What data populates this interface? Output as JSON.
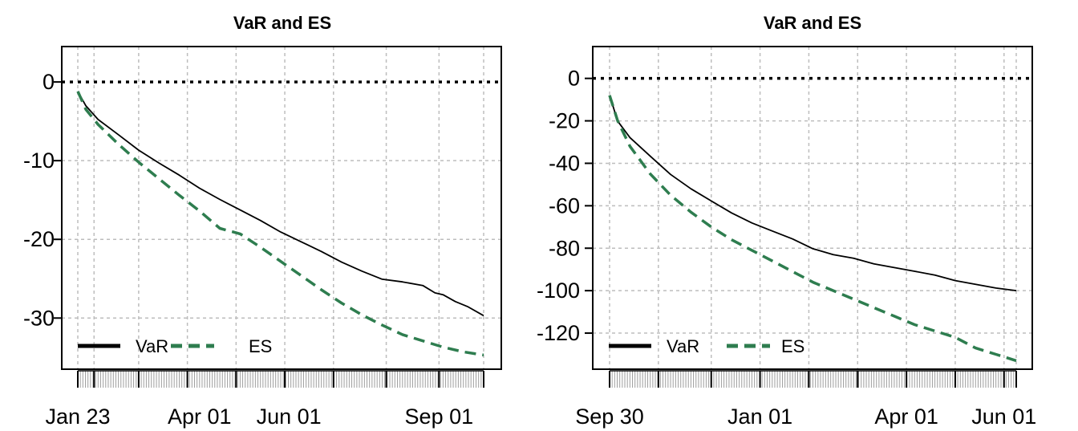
{
  "colors": {
    "var": "#000000",
    "es": "#2e7d4f",
    "grid": "#bdbdbd",
    "zero": "#000000"
  },
  "chart_data": [
    {
      "type": "line",
      "title": "VaR and ES",
      "x_ticks": [
        "Jan 23",
        "Apr 01",
        "Jun 01",
        "Sep 01"
      ],
      "x_tick_pos": [
        0.0,
        0.3,
        0.52,
        0.89
      ],
      "grid_x": [
        0.0,
        0.04,
        0.15,
        0.27,
        0.39,
        0.51,
        0.63,
        0.76,
        0.89,
        1.0
      ],
      "y_ticks": [
        0,
        -10,
        -20,
        -30
      ],
      "ylim": [
        -36.5,
        4.5
      ],
      "grid": true,
      "legend_position": "bottom-left",
      "series": [
        {
          "name": "VaR",
          "x": [
            0.0,
            0.02,
            0.05,
            0.1,
            0.15,
            0.2,
            0.25,
            0.3,
            0.35,
            0.4,
            0.45,
            0.5,
            0.55,
            0.6,
            0.65,
            0.7,
            0.75,
            0.8,
            0.85,
            0.88,
            0.9,
            0.93,
            0.96,
            1.0
          ],
          "y": [
            -1.2,
            -3.0,
            -4.8,
            -6.8,
            -8.6,
            -10.3,
            -11.9,
            -13.4,
            -14.9,
            -16.3,
            -17.7,
            -19.0,
            -20.3,
            -21.6,
            -22.8,
            -24.0,
            -25.1,
            -25.5,
            -25.8,
            -26.8,
            -27.1,
            -27.8,
            -28.5,
            -29.7
          ]
        },
        {
          "name": "ES",
          "x": [
            0.0,
            0.02,
            0.05,
            0.1,
            0.15,
            0.2,
            0.25,
            0.3,
            0.35,
            0.4,
            0.45,
            0.5,
            0.55,
            0.6,
            0.65,
            0.7,
            0.75,
            0.8,
            0.85,
            0.9,
            0.95,
            1.0
          ],
          "y": [
            -1.2,
            -3.5,
            -5.4,
            -7.9,
            -10.2,
            -12.3,
            -14.4,
            -16.4,
            -18.6,
            -19.3,
            -21.0,
            -22.8,
            -24.6,
            -26.4,
            -28.1,
            -29.6,
            -30.9,
            -32.1,
            -32.9,
            -33.7,
            -34.3,
            -34.7
          ]
        }
      ]
    },
    {
      "type": "line",
      "title": "VaR and ES",
      "x_ticks": [
        "Sep 30",
        "Jan 01",
        "Apr 01",
        "Jun 01"
      ],
      "x_tick_pos": [
        0.0,
        0.37,
        0.73,
        0.97
      ],
      "grid_x": [
        0.0,
        0.12,
        0.25,
        0.37,
        0.49,
        0.61,
        0.73,
        0.85,
        0.97,
        1.0
      ],
      "y_ticks": [
        0,
        -20,
        -40,
        -60,
        -80,
        -100,
        -120
      ],
      "ylim": [
        -137,
        15
      ],
      "grid": true,
      "legend_position": "bottom-left",
      "series": [
        {
          "name": "VaR",
          "x": [
            0.0,
            0.02,
            0.05,
            0.1,
            0.15,
            0.2,
            0.25,
            0.3,
            0.35,
            0.4,
            0.45,
            0.5,
            0.55,
            0.6,
            0.65,
            0.7,
            0.75,
            0.8,
            0.85,
            0.9,
            0.95,
            1.0
          ],
          "y": [
            -8,
            -20,
            -28,
            -37,
            -45,
            -52,
            -58,
            -63,
            -68,
            -72,
            -76,
            -80,
            -83,
            -85,
            -87,
            -89,
            -91,
            -93,
            -95,
            -97,
            -99,
            -100
          ]
        },
        {
          "name": "ES",
          "x": [
            0.0,
            0.02,
            0.05,
            0.1,
            0.15,
            0.2,
            0.25,
            0.3,
            0.35,
            0.4,
            0.45,
            0.5,
            0.55,
            0.6,
            0.65,
            0.7,
            0.75,
            0.8,
            0.85,
            0.9,
            0.95,
            1.0
          ],
          "y": [
            -8,
            -20,
            -32,
            -45,
            -55,
            -63,
            -70,
            -76,
            -81,
            -86,
            -91,
            -96,
            -100,
            -104,
            -108,
            -112,
            -116,
            -119,
            -122,
            -127,
            -130,
            -133
          ]
        }
      ]
    }
  ]
}
